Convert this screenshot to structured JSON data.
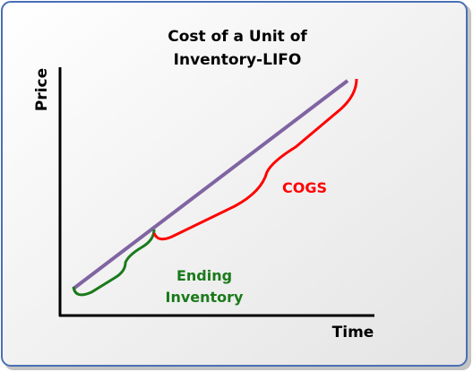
{
  "title": [
    "Cost of a Unit of",
    "Inventory-LIFO"
  ],
  "y_axis_label": "Price",
  "x_axis_label": "Time",
  "annotations": {
    "cogs": "COGS",
    "ending_inventory": [
      "Ending",
      "Inventory"
    ]
  }
}
